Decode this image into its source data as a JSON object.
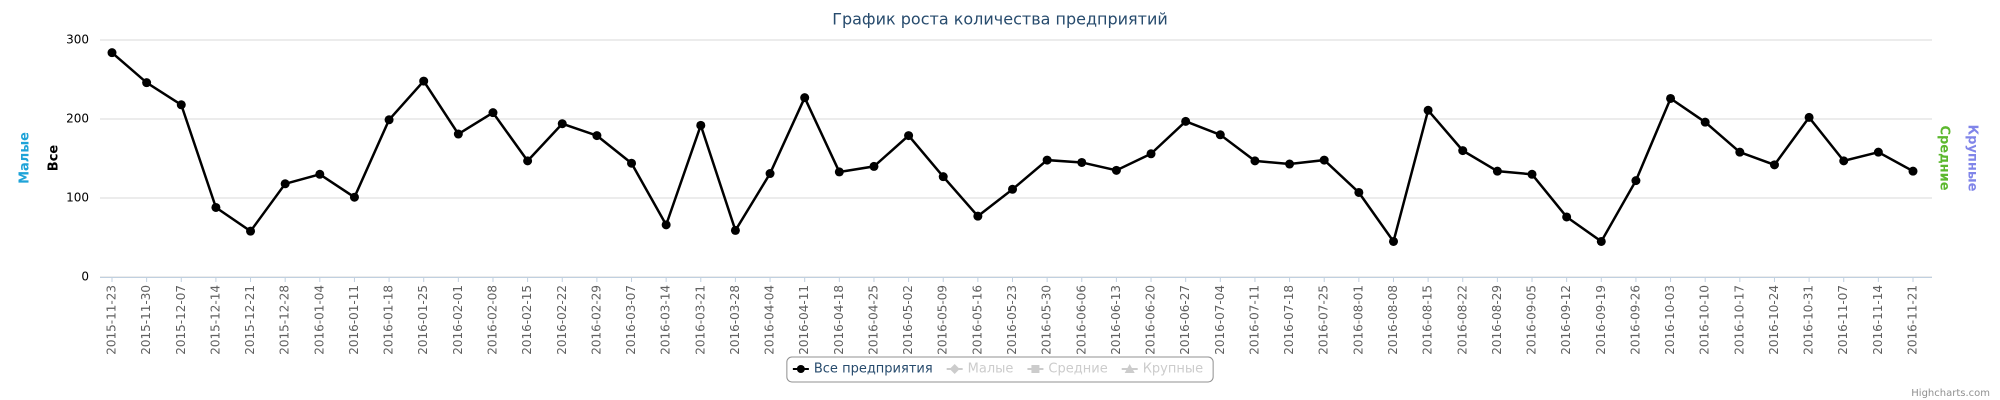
{
  "chart_data": {
    "type": "line",
    "title": "График роста количества предприятий",
    "categories": [
      "2015-11-23",
      "2015-11-30",
      "2015-12-07",
      "2015-12-14",
      "2015-12-21",
      "2015-12-28",
      "2016-01-04",
      "2016-01-11",
      "2016-01-18",
      "2016-01-25",
      "2016-02-01",
      "2016-02-08",
      "2016-02-15",
      "2016-02-22",
      "2016-02-29",
      "2016-03-07",
      "2016-03-14",
      "2016-03-21",
      "2016-03-28",
      "2016-04-04",
      "2016-04-11",
      "2016-04-18",
      "2016-04-25",
      "2016-05-02",
      "2016-05-09",
      "2016-05-16",
      "2016-05-23",
      "2016-05-30",
      "2016-06-06",
      "2016-06-13",
      "2016-06-20",
      "2016-06-27",
      "2016-07-04",
      "2016-07-11",
      "2016-07-18",
      "2016-07-25",
      "2016-08-01",
      "2016-08-08",
      "2016-08-15",
      "2016-08-22",
      "2016-08-29",
      "2016-09-05",
      "2016-09-12",
      "2016-09-19",
      "2016-09-26",
      "2016-10-03",
      "2016-10-10",
      "2016-10-17",
      "2016-10-24",
      "2016-10-31",
      "2016-11-07",
      "2016-11-14",
      "2016-11-21"
    ],
    "series": [
      {
        "name": "Все предприятия",
        "color": "#000000",
        "marker": "circle",
        "visible": true,
        "values": [
          284,
          246,
          218,
          88,
          58,
          118,
          130,
          101,
          199,
          248,
          181,
          208,
          147,
          194,
          179,
          144,
          66,
          192,
          59,
          131,
          227,
          133,
          140,
          179,
          127,
          77,
          111,
          148,
          145,
          135,
          156,
          197,
          180,
          147,
          143,
          148,
          107,
          45,
          211,
          160,
          134,
          130,
          76,
          45,
          122,
          226,
          196,
          158,
          142,
          202,
          147,
          158,
          134
        ]
      },
      {
        "name": "Малые",
        "color": "#1ea3d8",
        "marker": "diamond",
        "visible": false
      },
      {
        "name": "Средние",
        "color": "#5cb82e",
        "marker": "square",
        "visible": false
      },
      {
        "name": "Крупные",
        "color": "#8085e9",
        "marker": "triangle",
        "visible": false
      }
    ],
    "y_axis_titles": [
      {
        "text": "Малые",
        "color": "#1ea3d8",
        "side": "left"
      },
      {
        "text": "Все",
        "color": "#000000",
        "side": "left"
      },
      {
        "text": "Средние",
        "color": "#5cb82e",
        "side": "right"
      },
      {
        "text": "Крупные",
        "color": "#8085e9",
        "side": "right"
      }
    ],
    "ylim": [
      0,
      300
    ],
    "yticks": [
      0,
      100,
      200,
      300
    ],
    "grid": true,
    "legend": "bottom",
    "credits": "Highcharts.com"
  }
}
